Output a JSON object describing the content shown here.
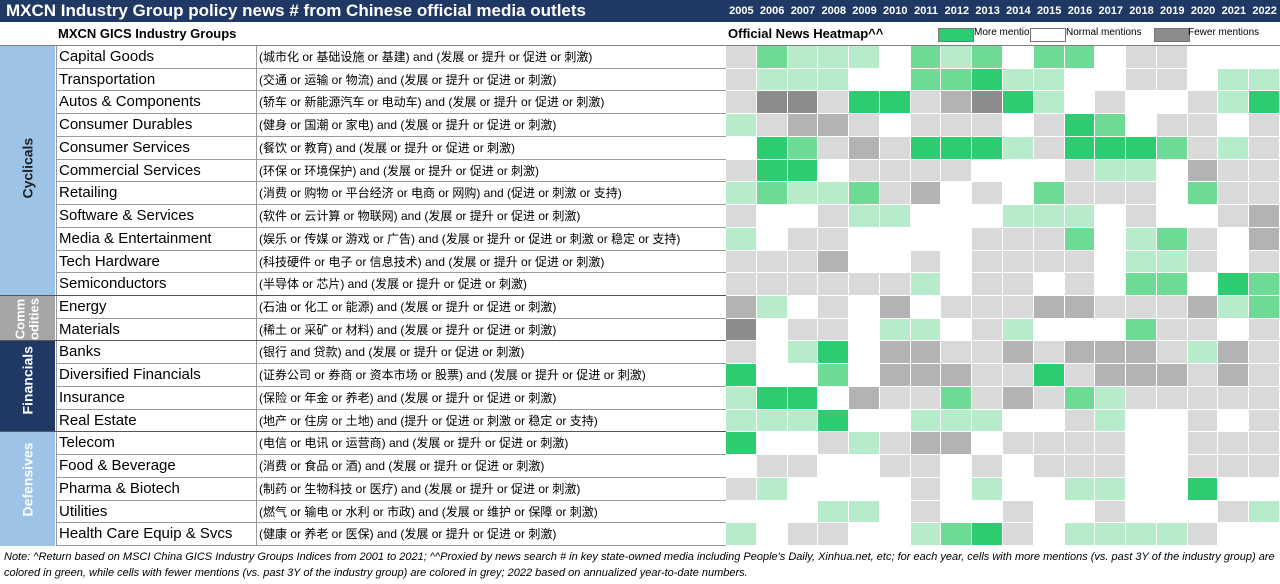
{
  "title": "MXCN Industry Group policy news # from Chinese official media outlets",
  "column_header": "MXCN GICS Industry Groups",
  "heatmap_label": "Official News Heatmap^^",
  "legend": [
    {
      "label": "More mentions",
      "color": "#2ecc71"
    },
    {
      "label": "Normal mentions",
      "color": "#ffffff"
    },
    {
      "label": "Fewer mentions",
      "color": "#8c8c8c"
    }
  ],
  "colors": {
    "header_bg": "#1f3864",
    "sector_light": "#9dc3e6",
    "sector_mid": "#a6a6a6",
    "sector_dark": "#1f3864"
  },
  "sectors": [
    {
      "name": "Cyclicals",
      "rows": 11,
      "color": "#9dc3e6",
      "text_color": "#1f1f1f"
    },
    {
      "name": "Commodities",
      "rows": 2,
      "color": "#a6a6a6",
      "text_color": "#ffffff",
      "display": "Comm\nodities"
    },
    {
      "name": "Financials",
      "rows": 4,
      "color": "#1f3864",
      "text_color": "#ffffff"
    },
    {
      "name": "Defensives",
      "rows": 5,
      "color": "#9dc3e6",
      "text_color": "#ffffff"
    }
  ],
  "note": "Note: ^Return based on MSCI China GICS Industry Groups Indices from 2001 to 2021; ^^Proxied by news search # in key state-owned media including People's Daily, Xinhua.net, etc; for each year, cells with more mentions (vs. past 3Y of the industry group) are colored in green, while cells with fewer mentions (vs. past 3Y of the industry group) are colored in grey; 2022 based on annualized year-to-date numbers.",
  "chart_data": {
    "type": "heatmap",
    "title": "Official News Heatmap^^",
    "years": [
      "2005",
      "2006",
      "2007",
      "2008",
      "2009",
      "2010",
      "2011",
      "2012",
      "2013",
      "2014",
      "2015",
      "2016",
      "2017",
      "2018",
      "2019",
      "2020",
      "2021",
      "2022"
    ],
    "scale": "-3 = fewer mentions (grey) ... 0 = normal (white) ... +3 = more mentions (green)",
    "rows": [
      {
        "name": "Capital Goods",
        "keywords": "(城市化 or 基础设施 or 基建) and (发展 or 提升 or 促进 or 刺激)",
        "values": [
          -1,
          2,
          1,
          1,
          1,
          0,
          2,
          1,
          2,
          0,
          2,
          2,
          0,
          -1,
          -1,
          0,
          0,
          0
        ]
      },
      {
        "name": "Transportation",
        "keywords": "(交通 or 运输 or 物流) and (发展 or 提升 or 促进 or 刺激)",
        "values": [
          -1,
          1,
          1,
          1,
          0,
          0,
          2,
          2,
          3,
          1,
          1,
          0,
          0,
          -1,
          -1,
          0,
          1,
          1
        ]
      },
      {
        "name": "Autos & Components",
        "keywords": "(轿车 or 新能源汽车 or 电动车) and (发展 or 提升 or 促进 or 刺激)",
        "values": [
          -1,
          -3,
          -3,
          -1,
          3,
          3,
          -1,
          -2,
          -3,
          3,
          1,
          0,
          -1,
          0,
          0,
          -1,
          1,
          3
        ]
      },
      {
        "name": "Consumer Durables",
        "keywords": "(健身 or 国潮 or 家电) and (发展 or 提升 or 促进 or 刺激)",
        "values": [
          1,
          -1,
          -2,
          -2,
          -1,
          0,
          -1,
          -1,
          -1,
          0,
          -1,
          3,
          2,
          0,
          -1,
          -1,
          0,
          -1
        ]
      },
      {
        "name": "Consumer Services",
        "keywords": "(餐饮 or 教育) and (发展 or 提升 or 促进 or 刺激)",
        "values": [
          0,
          3,
          2,
          -1,
          -2,
          -1,
          3,
          3,
          3,
          1,
          -1,
          3,
          3,
          3,
          2,
          -1,
          1,
          -1
        ]
      },
      {
        "name": "Commercial Services",
        "keywords": "(环保 or 环境保护) and (发展 or 提升 or 促进 or 刺激)",
        "values": [
          -1,
          3,
          3,
          0,
          -1,
          -1,
          -1,
          -1,
          0,
          0,
          0,
          -1,
          1,
          1,
          0,
          -2,
          -1,
          -1
        ]
      },
      {
        "name": "Retailing",
        "keywords": "(消费 or 购物 or 平台经济 or 电商 or 网购) and (促进 or 刺激 or 支持)",
        "values": [
          1,
          2,
          1,
          1,
          2,
          -1,
          -2,
          0,
          -1,
          0,
          2,
          -1,
          -1,
          -1,
          0,
          2,
          -1,
          -1
        ]
      },
      {
        "name": "Software & Services",
        "keywords": "(软件 or 云计算 or 物联网) and (发展 or 提升 or 促进 or 刺激)",
        "values": [
          -1,
          0,
          0,
          -1,
          1,
          1,
          0,
          0,
          0,
          1,
          1,
          1,
          0,
          -1,
          0,
          0,
          -1,
          -2
        ]
      },
      {
        "name": "Media & Entertainment",
        "keywords": "(娱乐 or 传媒 or 游戏 or 广告) and (发展 or 提升 or 促进 or 刺激 or 稳定 or 支持)",
        "values": [
          1,
          0,
          -1,
          -1,
          0,
          0,
          0,
          0,
          -1,
          -1,
          -1,
          2,
          0,
          1,
          2,
          -1,
          0,
          -2
        ]
      },
      {
        "name": "Tech Hardware",
        "keywords": "(科技硬件 or 电子 or 信息技术) and (发展 or 提升 or 促进 or 刺激)",
        "values": [
          -1,
          -1,
          -1,
          -2,
          0,
          0,
          -1,
          0,
          -1,
          -1,
          -1,
          -1,
          0,
          1,
          1,
          -1,
          0,
          -1
        ]
      },
      {
        "name": "Semiconductors",
        "keywords": "(半导体 or 芯片) and (发展 or 提升 or 促进 or 刺激)",
        "values": [
          -1,
          -1,
          -1,
          -1,
          -1,
          -1,
          1,
          0,
          -1,
          -1,
          0,
          -1,
          0,
          2,
          2,
          0,
          3,
          2
        ]
      },
      {
        "name": "Energy",
        "keywords": "(石油 or 化工 or 能源) and (发展 or 提升 or 促进 or 刺激)",
        "values": [
          -2,
          1,
          0,
          -1,
          0,
          -2,
          0,
          -1,
          -1,
          -1,
          -2,
          -2,
          -1,
          -1,
          -1,
          -2,
          1,
          2
        ]
      },
      {
        "name": "Materials",
        "keywords": "(稀土 or 采矿 or 材料) and (发展 or 提升 or 促进 or 刺激)",
        "values": [
          -3,
          0,
          -1,
          -1,
          0,
          1,
          1,
          0,
          -1,
          1,
          0,
          0,
          0,
          2,
          -1,
          -1,
          0,
          -1
        ]
      },
      {
        "name": "Banks",
        "keywords": "(银行 and 贷款) and (发展 or 提升 or 促进 or 刺激)",
        "values": [
          -1,
          0,
          1,
          3,
          0,
          -2,
          -2,
          -1,
          -1,
          -2,
          -1,
          -2,
          -2,
          -2,
          -1,
          1,
          -2,
          -1
        ]
      },
      {
        "name": "Diversified Financials",
        "keywords": "(证券公司 or 券商 or 资本市场 or 股票) and (发展 or 提升 or 促进 or 刺激)",
        "values": [
          3,
          0,
          0,
          2,
          0,
          -2,
          -2,
          -2,
          -1,
          -1,
          3,
          -1,
          -2,
          -2,
          -2,
          -1,
          -2,
          -1
        ]
      },
      {
        "name": "Insurance",
        "keywords": "(保险 or 年金 or 养老) and (发展 or 提升 or 促进 or 刺激)",
        "values": [
          1,
          3,
          3,
          0,
          -2,
          -1,
          -1,
          2,
          -1,
          -2,
          -1,
          2,
          1,
          -1,
          -1,
          -1,
          -1,
          -1
        ]
      },
      {
        "name": "Real Estate",
        "keywords": "(地产 or 住房 or 土地) and (提升 or 促进 or 刺激 or 稳定 or 支持)",
        "values": [
          1,
          1,
          1,
          3,
          0,
          0,
          1,
          1,
          1,
          0,
          0,
          -1,
          1,
          0,
          0,
          -1,
          0,
          -1
        ]
      },
      {
        "name": "Telecom",
        "keywords": "(电信 or 电讯 or 运营商) and (发展 or 提升 or 促进 or 刺激)",
        "values": [
          3,
          0,
          0,
          -1,
          1,
          -1,
          -2,
          -2,
          0,
          -1,
          -1,
          -1,
          -1,
          0,
          0,
          -1,
          -1,
          -1
        ]
      },
      {
        "name": "Food & Beverage",
        "keywords": "(消费 or 食品 or 酒) and (发展 or 提升 or 促进 or 刺激)",
        "values": [
          0,
          -1,
          -1,
          0,
          0,
          -1,
          -1,
          0,
          -1,
          0,
          -1,
          -1,
          -1,
          0,
          0,
          -1,
          -1,
          -1
        ]
      },
      {
        "name": "Pharma & Biotech",
        "keywords": "(制药 or 生物科技 or 医疗) and (发展 or 提升 or 促进 or 刺激)",
        "values": [
          -1,
          1,
          0,
          0,
          0,
          0,
          -1,
          0,
          1,
          0,
          0,
          1,
          1,
          0,
          0,
          3,
          0,
          0
        ]
      },
      {
        "name": "Utilities",
        "keywords": "(燃气 or 输电 or 水利 or 市政) and (发展 or 维护 or 保障 or 刺激)",
        "values": [
          0,
          0,
          0,
          1,
          1,
          0,
          -1,
          0,
          0,
          -1,
          0,
          0,
          -1,
          0,
          0,
          0,
          -1,
          1
        ]
      },
      {
        "name": "Health Care Equip & Svcs",
        "keywords": "(健康 or 养老 or 医保) and (发展 or 提升 or 促进 or 刺激)",
        "values": [
          1,
          0,
          -1,
          -1,
          0,
          0,
          1,
          2,
          3,
          -1,
          0,
          1,
          1,
          1,
          1,
          -1,
          0,
          0
        ]
      }
    ]
  }
}
